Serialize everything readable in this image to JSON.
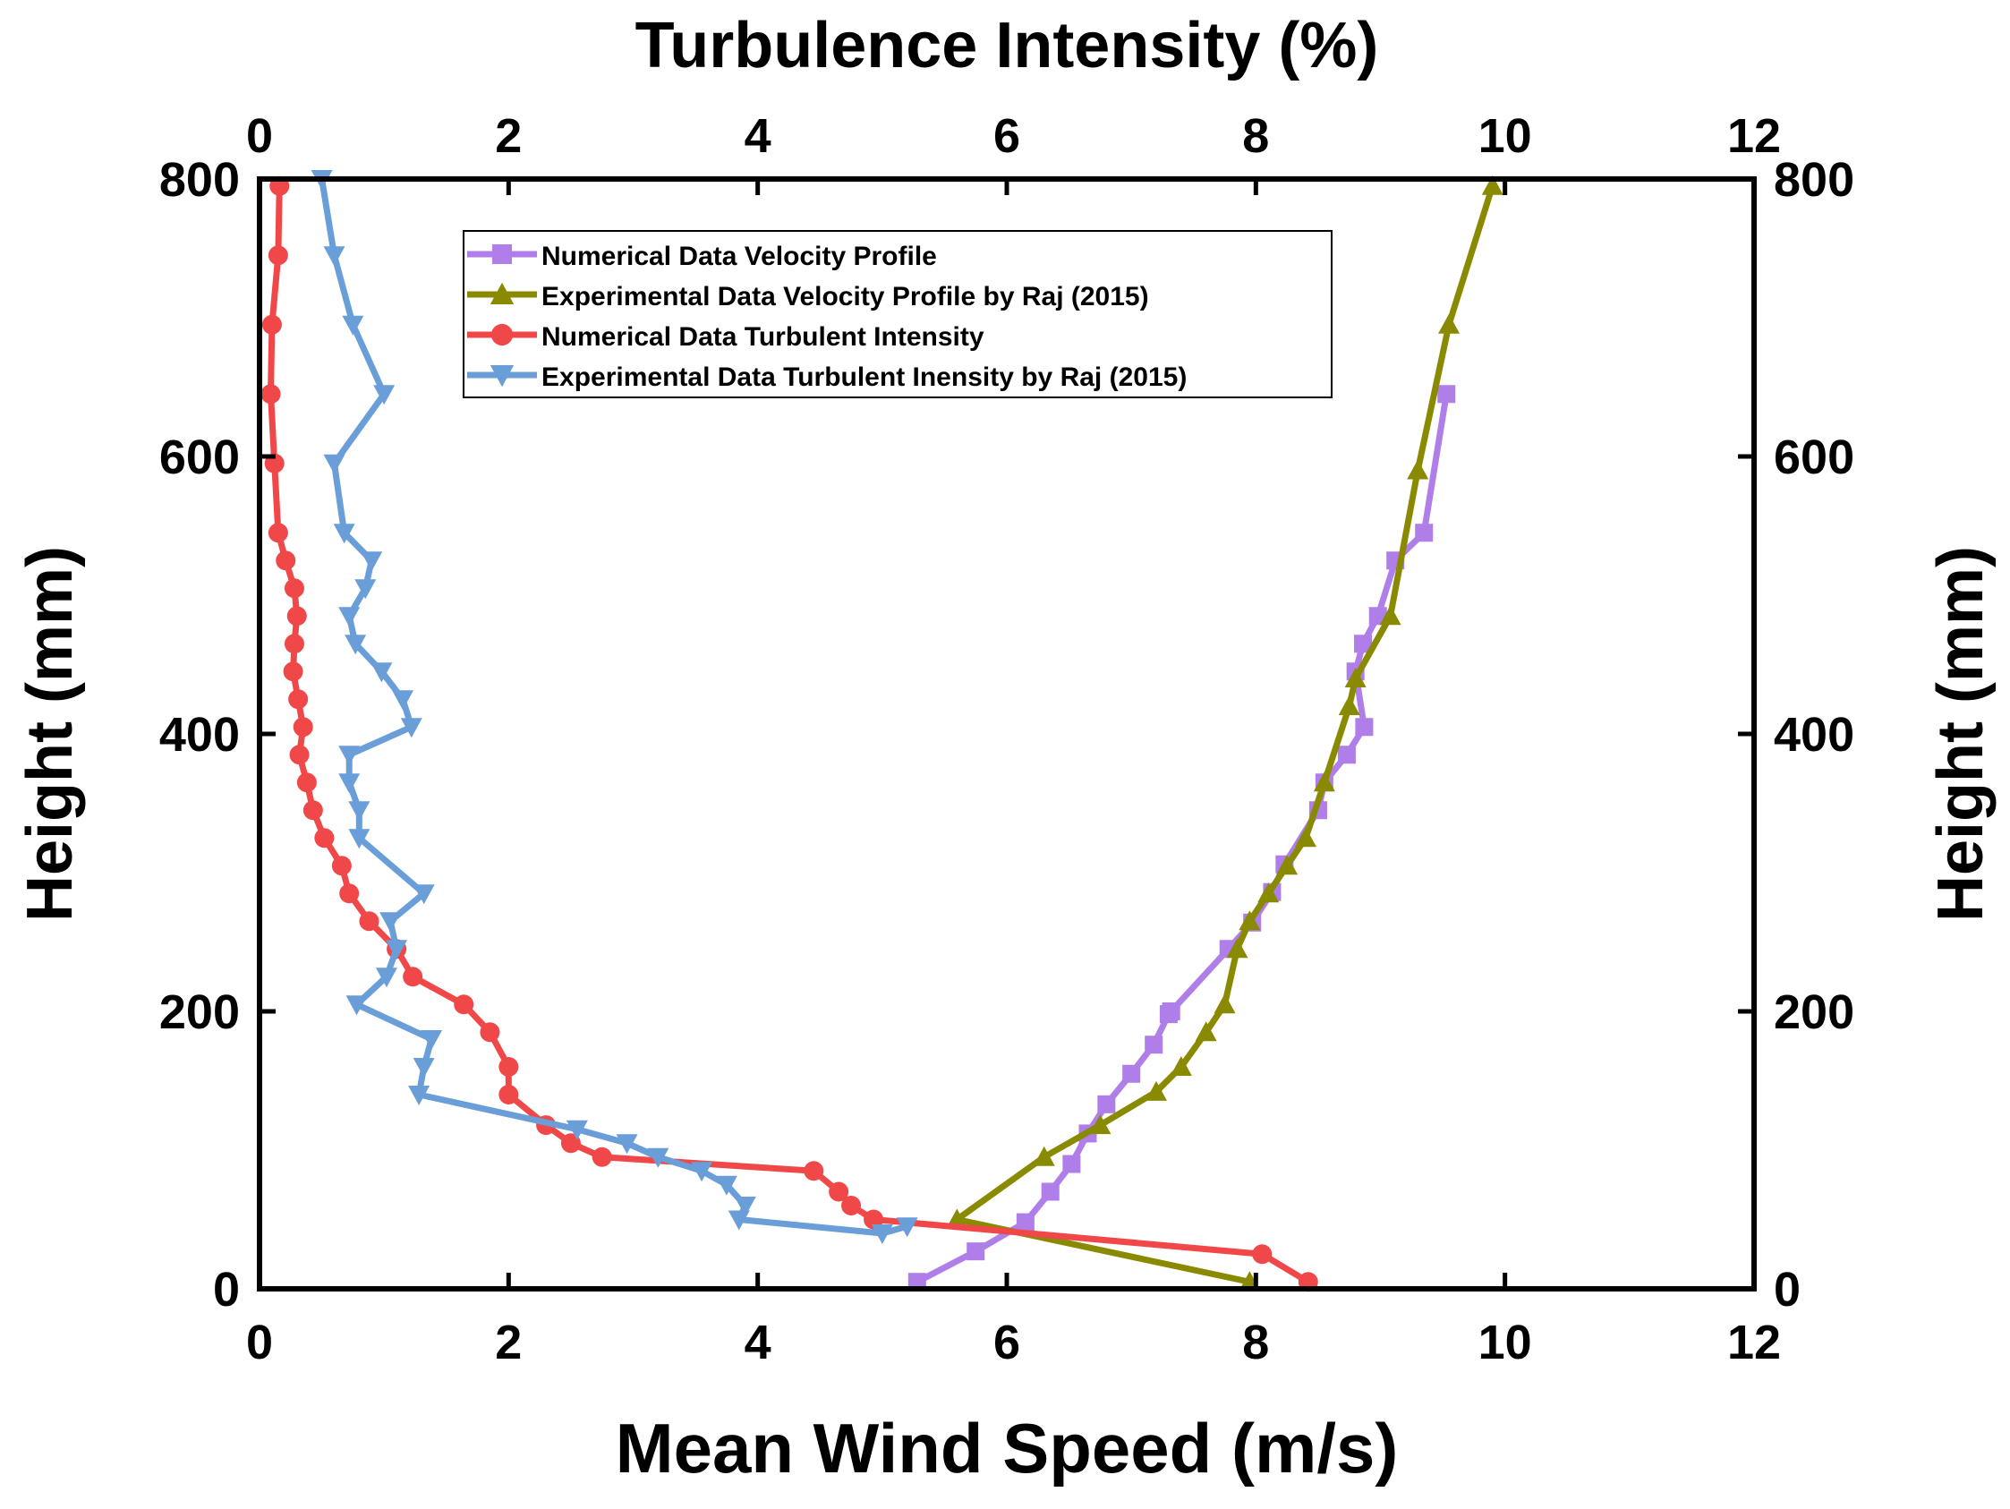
{
  "chart_data": {
    "type": "line",
    "title": "",
    "xlabel": "Mean Wind Speed (m/s)",
    "x2label": "Turbulence Intensity (%)",
    "ylabel": "Height (mm)",
    "y2label": "Height (mm)",
    "xlim": [
      0,
      12
    ],
    "x2lim": [
      0,
      12
    ],
    "ylim": [
      0,
      800
    ],
    "xticks": [
      "0",
      "2",
      "4",
      "6",
      "8",
      "10",
      "12"
    ],
    "x2ticks": [
      "0",
      "2",
      "4",
      "6",
      "8",
      "10",
      "12"
    ],
    "yticks": [
      "0",
      "200",
      "400",
      "600",
      "800"
    ],
    "y2ticks": [
      "0",
      "200",
      "400",
      "600",
      "800"
    ],
    "legend_position": "top-left",
    "series": [
      {
        "name": "Numerical Data Velocity Profile",
        "axis": "bottom",
        "color": "#b07ee8",
        "marker": "square",
        "x": [
          5.28,
          5.75,
          6.15,
          6.35,
          6.52,
          6.65,
          6.8,
          7.0,
          7.18,
          7.3,
          7.32,
          7.78,
          7.97,
          8.13,
          8.23,
          8.5,
          8.55,
          8.73,
          8.87,
          8.8,
          8.86,
          8.98,
          9.12,
          9.35,
          9.53
        ],
        "y": [
          5,
          27,
          48,
          70,
          90,
          112,
          133,
          155,
          176,
          198,
          200,
          245,
          264,
          286,
          306,
          345,
          365,
          385,
          405,
          445,
          465,
          485,
          525,
          545,
          645
        ]
      },
      {
        "name": "Experimental Data Velocity Profile by Raj (2015)",
        "axis": "bottom",
        "color": "#8a8a00",
        "marker": "triangle-up",
        "x": [
          7.95,
          5.6,
          6.3,
          6.75,
          7.2,
          7.4,
          7.6,
          7.75,
          7.85,
          7.95,
          8.1,
          8.25,
          8.4,
          8.55,
          8.75,
          8.8,
          9.08,
          9.3,
          9.55,
          9.9
        ],
        "y": [
          5,
          50,
          95,
          118,
          142,
          160,
          185,
          205,
          245,
          265,
          285,
          305,
          325,
          365,
          420,
          440,
          485,
          590,
          695,
          795
        ]
      },
      {
        "name": "Numerical Data Turbulent Intensity",
        "axis": "top",
        "color": "#f04848",
        "marker": "circle",
        "x": [
          0.16,
          0.15,
          0.1,
          0.09,
          0.12,
          0.15,
          0.21,
          0.28,
          0.3,
          0.28,
          0.27,
          0.31,
          0.35,
          0.32,
          0.38,
          0.43,
          0.52,
          0.66,
          0.72,
          0.88,
          1.1,
          1.23,
          1.64,
          1.85,
          2.0,
          2.0,
          2.3,
          2.5,
          2.75,
          4.45,
          4.65,
          4.75,
          4.93,
          8.05,
          8.42
        ],
        "y": [
          795,
          745,
          695,
          645,
          595,
          545,
          525,
          505,
          485,
          465,
          445,
          425,
          405,
          385,
          365,
          345,
          325,
          305,
          285,
          265,
          245,
          225,
          205,
          185,
          160,
          140,
          118,
          105,
          95,
          85,
          70,
          60,
          50,
          25,
          5
        ]
      },
      {
        "name": "Experimental Data Turbulent Inensity  by Raj (2015)",
        "axis": "top",
        "color": "#6a9ed8",
        "marker": "triangle-down",
        "x": [
          0.5,
          0.6,
          0.75,
          1.0,
          0.6,
          0.68,
          0.9,
          0.85,
          0.72,
          0.77,
          0.98,
          1.15,
          1.22,
          0.72,
          0.72,
          0.8,
          0.8,
          1.32,
          1.05,
          1.1,
          1.02,
          0.78,
          1.38,
          1.32,
          1.28,
          2.55,
          2.95,
          3.2,
          3.55,
          3.75,
          3.9,
          3.85,
          5.0,
          5.2
        ],
        "y": [
          800,
          745,
          695,
          645,
          595,
          545,
          525,
          505,
          485,
          465,
          445,
          425,
          405,
          385,
          365,
          345,
          325,
          285,
          265,
          245,
          225,
          205,
          180,
          160,
          140,
          115,
          105,
          95,
          85,
          75,
          60,
          50,
          40,
          45
        ]
      }
    ]
  }
}
